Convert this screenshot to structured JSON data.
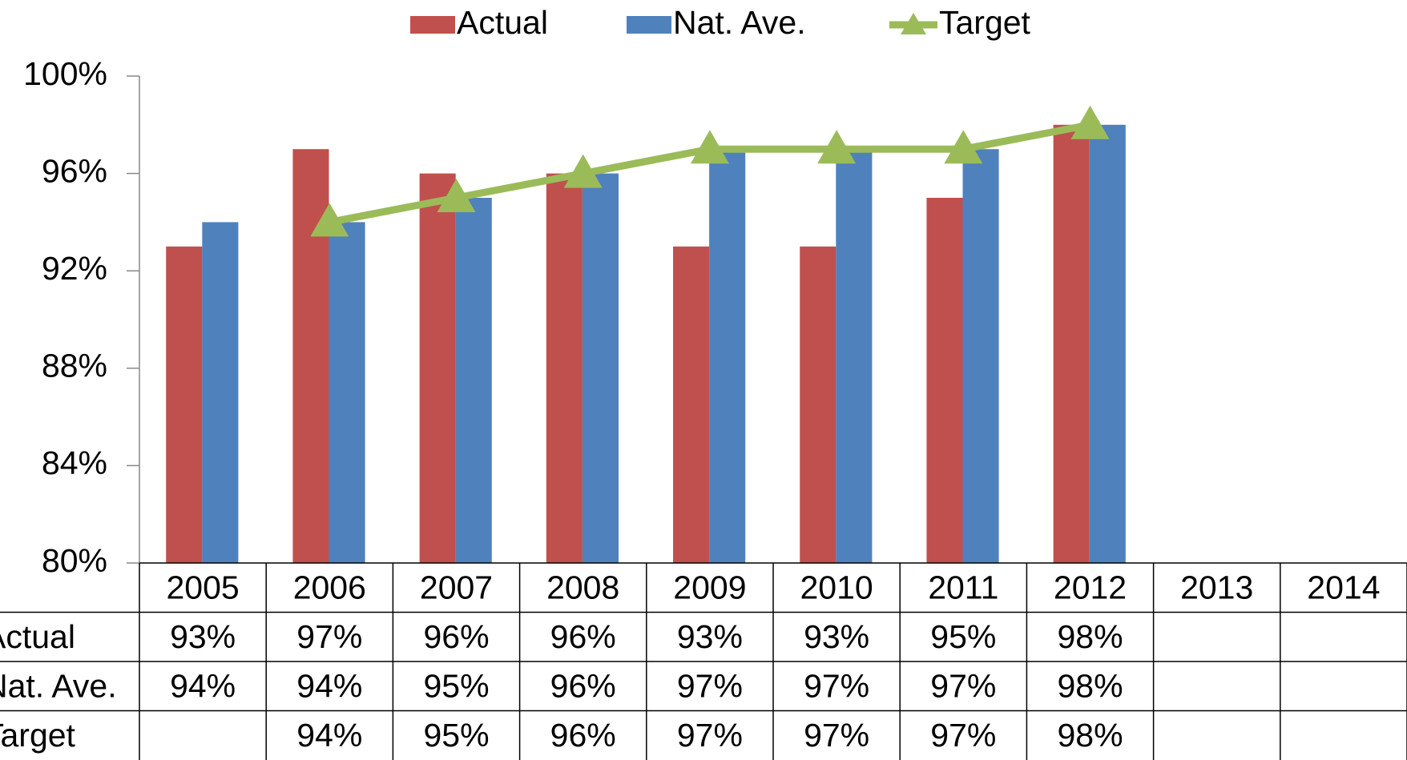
{
  "chart_data": {
    "type": "bar",
    "categories": [
      "2005",
      "2006",
      "2007",
      "2008",
      "2009",
      "2010",
      "2011",
      "2012",
      "2013",
      "2014"
    ],
    "series": [
      {
        "name": "Actual",
        "color": "#c0504d",
        "values": [
          93,
          97,
          96,
          96,
          93,
          93,
          95,
          98,
          null,
          null
        ],
        "value_labels": [
          "93%",
          "97%",
          "96%",
          "96%",
          "93%",
          "93%",
          "95%",
          "98%",
          null,
          null
        ]
      },
      {
        "name": "Nat. Ave.",
        "color": "#4f81bd",
        "values": [
          94,
          94,
          95,
          96,
          97,
          97,
          97,
          98,
          null,
          null
        ],
        "value_labels": [
          "94%",
          "94%",
          "95%",
          "96%",
          "97%",
          "97%",
          "97%",
          "98%",
          null,
          null
        ]
      },
      {
        "name": "Target",
        "color": "#9bbb59",
        "type": "line",
        "values": [
          null,
          94,
          95,
          96,
          97,
          97,
          97,
          98,
          null,
          null
        ],
        "value_labels": [
          null,
          "94%",
          "95%",
          "96%",
          "97%",
          "97%",
          "97%",
          "98%",
          null,
          null
        ]
      }
    ],
    "ylim": [
      80,
      100
    ],
    "yticks": [
      {
        "value": 80,
        "label": "80%"
      },
      {
        "value": 84,
        "label": "84%"
      },
      {
        "value": 88,
        "label": "88%"
      },
      {
        "value": 92,
        "label": "92%"
      },
      {
        "value": 96,
        "label": "96%"
      },
      {
        "value": 100,
        "label": "100%"
      }
    ],
    "legend": "top",
    "data_table": true
  }
}
